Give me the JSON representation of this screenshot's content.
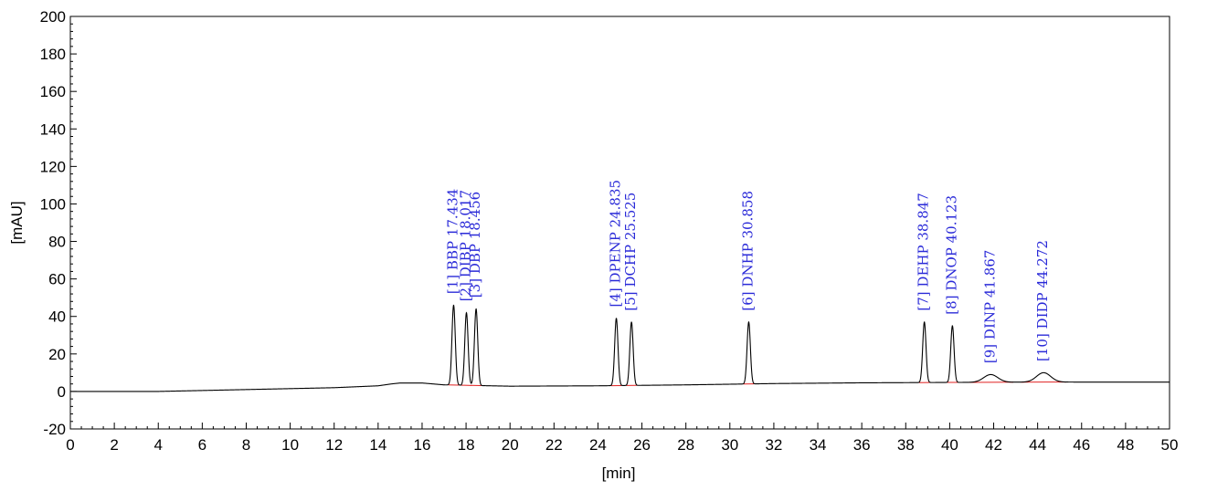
{
  "chart_data": {
    "type": "line",
    "xlabel": "[min]",
    "ylabel": "[mAU]",
    "xlim": [
      0,
      50
    ],
    "ylim": [
      -20,
      200
    ],
    "x_ticks": [
      "0",
      "2",
      "4",
      "6",
      "8",
      "10",
      "12",
      "14",
      "16",
      "18",
      "20",
      "22",
      "24",
      "26",
      "28",
      "30",
      "32",
      "34",
      "36",
      "38",
      "40",
      "42",
      "44",
      "46",
      "48",
      "50"
    ],
    "y_ticks": [
      "-20",
      "0",
      "20",
      "40",
      "60",
      "80",
      "100",
      "120",
      "140",
      "160",
      "180",
      "200"
    ],
    "grid": false,
    "colors": {
      "trace": "#000000",
      "baseline": "#e02020",
      "labels": "#2a2ad8",
      "frame": "#000000"
    },
    "peaks": [
      {
        "label": "[1] BBP 17.434",
        "rt": 17.434,
        "height": 46
      },
      {
        "label": "[2] DIBP 18.017",
        "rt": 18.017,
        "height": 42
      },
      {
        "label": "[3] DBP 18.456",
        "rt": 18.456,
        "height": 44
      },
      {
        "label": "[4] DPENP 24.835",
        "rt": 24.835,
        "height": 39
      },
      {
        "label": "[5] DCHP 25.525",
        "rt": 25.525,
        "height": 37
      },
      {
        "label": "[6] DNHP 30.858",
        "rt": 30.858,
        "height": 37
      },
      {
        "label": "[7] DEHP 38.847",
        "rt": 38.847,
        "height": 37
      },
      {
        "label": "[8] DNOP 40.123",
        "rt": 40.123,
        "height": 35
      },
      {
        "label": "[9] DINP 41.867",
        "rt": 41.867,
        "height": 9
      },
      {
        "label": "[10] DIDP 44.272",
        "rt": 44.272,
        "height": 10
      }
    ],
    "baseline_trace": {
      "x": [
        0,
        2,
        4,
        6,
        8,
        10,
        12,
        13,
        14,
        14.6,
        15,
        16,
        17,
        20,
        24,
        28,
        32,
        36,
        40,
        44,
        46,
        50
      ],
      "y": [
        0,
        0,
        0,
        0.5,
        1,
        1.5,
        2,
        2.5,
        3,
        4,
        4.5,
        4.5,
        3.5,
        2.8,
        3,
        3.5,
        4.2,
        4.6,
        4.8,
        5,
        5,
        5
      ]
    }
  }
}
